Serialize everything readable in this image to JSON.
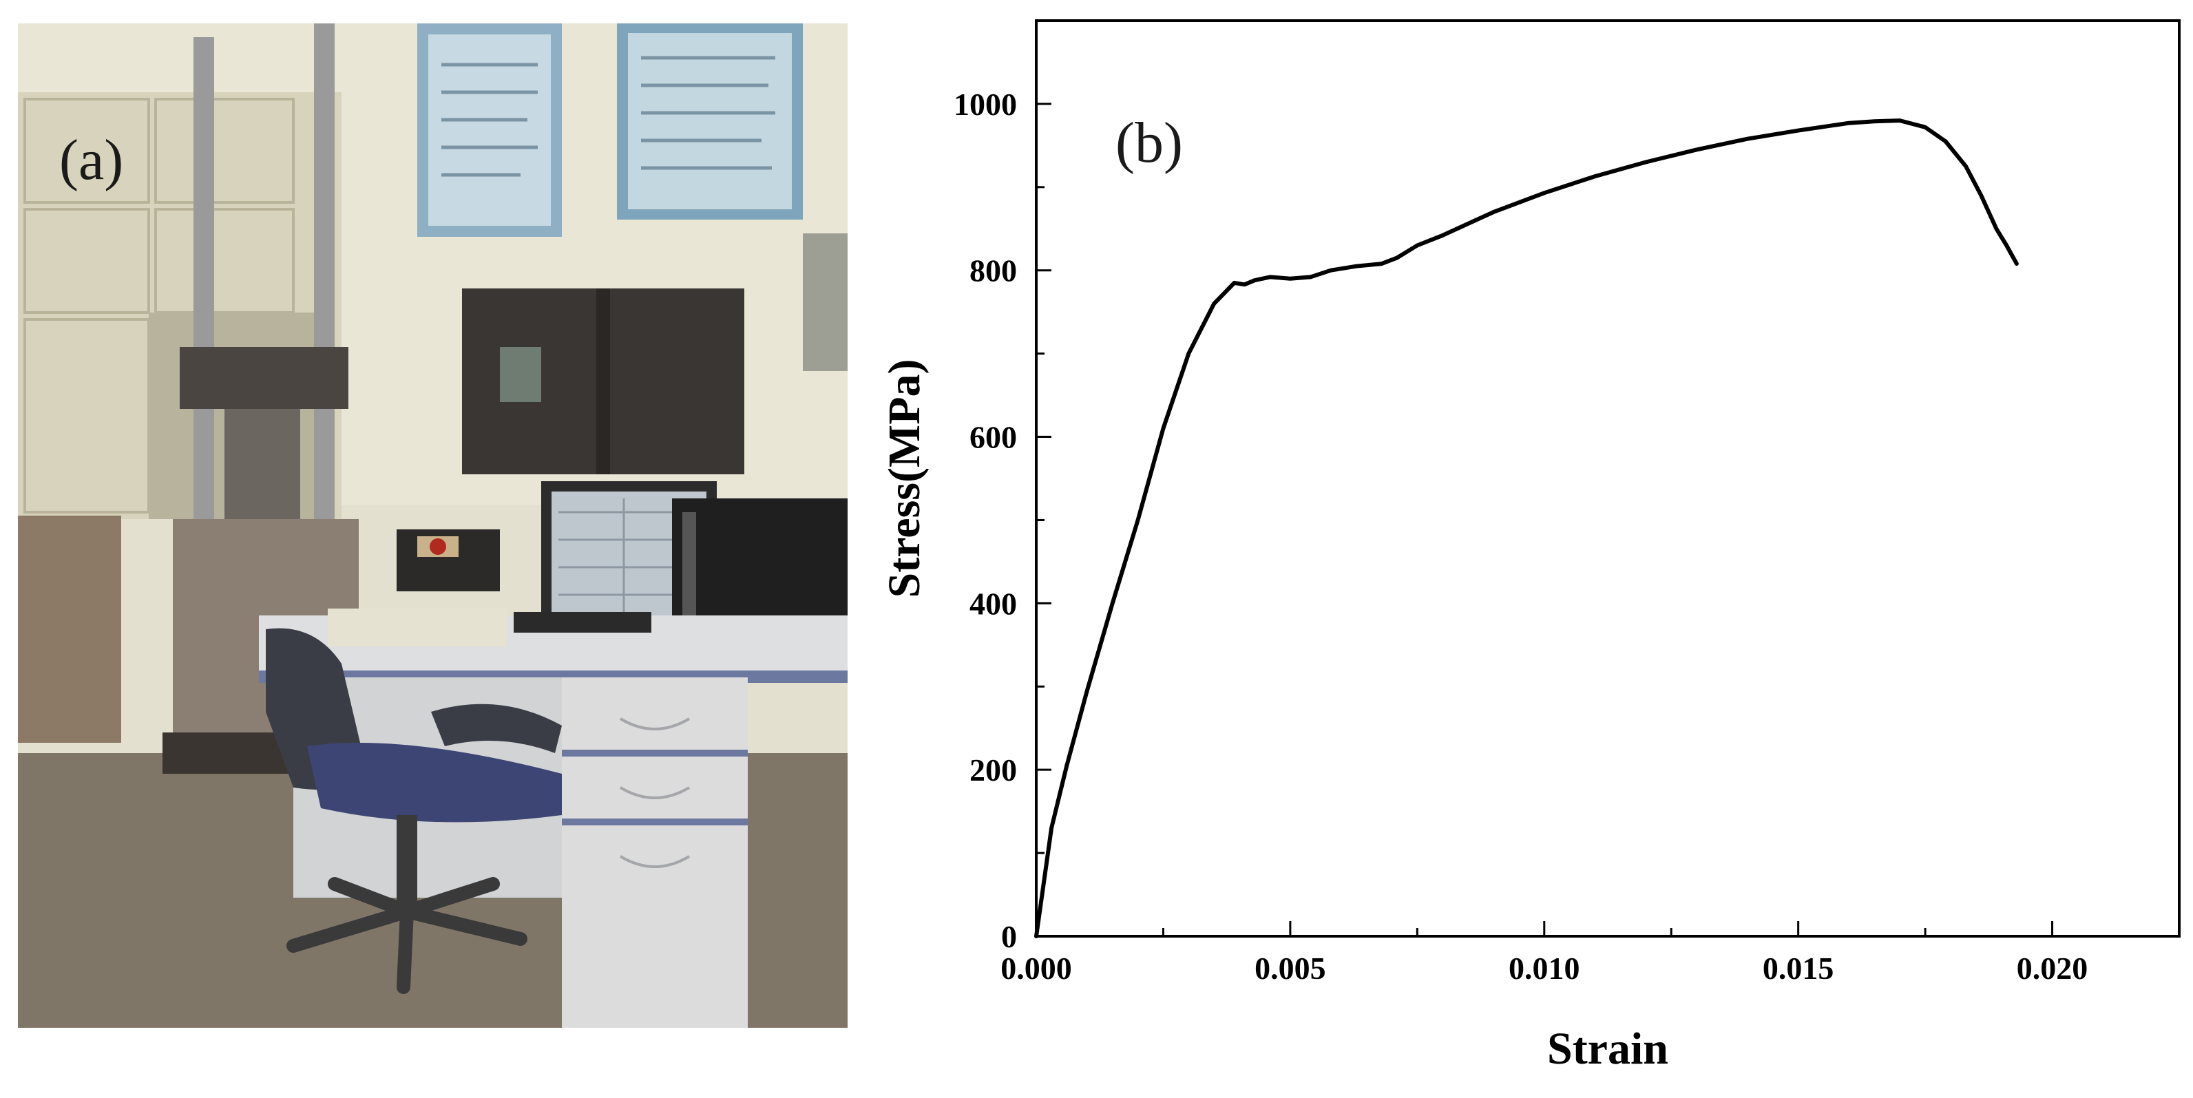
{
  "panels": {
    "photo_label": "(a)",
    "chart_label": "(b)"
  },
  "chart_data": {
    "type": "line",
    "title": "",
    "xlabel": "Strain",
    "ylabel": "Stress(MPa)",
    "xlim": [
      0.0,
      0.0225
    ],
    "ylim": [
      0,
      1100
    ],
    "x_ticks": [
      "0.000",
      "0.005",
      "0.010",
      "0.015",
      "0.020"
    ],
    "y_ticks": [
      "0",
      "200",
      "400",
      "600",
      "800",
      "1000"
    ],
    "grid": false,
    "series": [
      {
        "color": "#000000",
        "x": [
          0.0,
          0.0003,
          0.0006,
          0.001,
          0.0015,
          0.002,
          0.0025,
          0.003,
          0.0035,
          0.0039,
          0.0041,
          0.0043,
          0.0046,
          0.005,
          0.0054,
          0.0058,
          0.0063,
          0.0068,
          0.0071,
          0.0075,
          0.008,
          0.009,
          0.01,
          0.011,
          0.012,
          0.013,
          0.014,
          0.015,
          0.016,
          0.0165,
          0.017,
          0.0175,
          0.0179,
          0.0183,
          0.0186,
          0.0189,
          0.0191,
          0.0193
        ],
        "y": [
          0,
          130,
          205,
          295,
          400,
          500,
          610,
          700,
          760,
          785,
          783,
          788,
          792,
          790,
          792,
          800,
          805,
          808,
          815,
          830,
          842,
          870,
          893,
          913,
          930,
          945,
          958,
          968,
          977,
          979,
          980,
          972,
          955,
          925,
          890,
          850,
          830,
          808
        ]
      }
    ]
  }
}
